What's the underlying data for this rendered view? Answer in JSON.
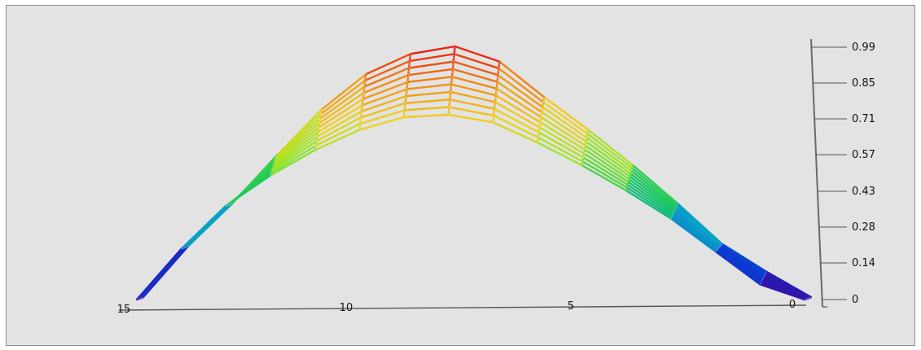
{
  "chart_data": {
    "type": "surface",
    "title": "",
    "xlabel": "",
    "ylabel": "",
    "zlabel": "",
    "x_ticks": [
      "15",
      "10",
      "5",
      "0"
    ],
    "z_ticks": [
      "0",
      "0.14",
      "0.28",
      "0.43",
      "0.57",
      "0.71",
      "0.85",
      "0.99"
    ],
    "xlim": [
      0,
      15
    ],
    "zlim": [
      0,
      0.99
    ],
    "x": [
      0,
      1,
      2,
      3,
      4,
      5,
      6,
      7,
      8,
      9,
      10,
      11,
      12,
      13,
      14,
      15
    ],
    "surface_front_row": [
      0.0,
      0.06,
      0.19,
      0.32,
      0.43,
      0.53,
      0.62,
      0.7,
      0.73,
      0.72,
      0.67,
      0.59,
      0.49,
      0.37,
      0.2,
      0.0
    ],
    "surface_back_row": [
      0.0,
      0.1,
      0.21,
      0.37,
      0.52,
      0.66,
      0.79,
      0.93,
      0.99,
      0.96,
      0.88,
      0.74,
      0.56,
      0.37,
      0.2,
      0.0
    ],
    "n_rows": 10,
    "colormap": [
      "#3a0aa0",
      "#0a3ad2",
      "#0aa0c8",
      "#18c85a",
      "#9ae62a",
      "#f0d21e",
      "#f08c14",
      "#e61414"
    ],
    "grid": false
  }
}
